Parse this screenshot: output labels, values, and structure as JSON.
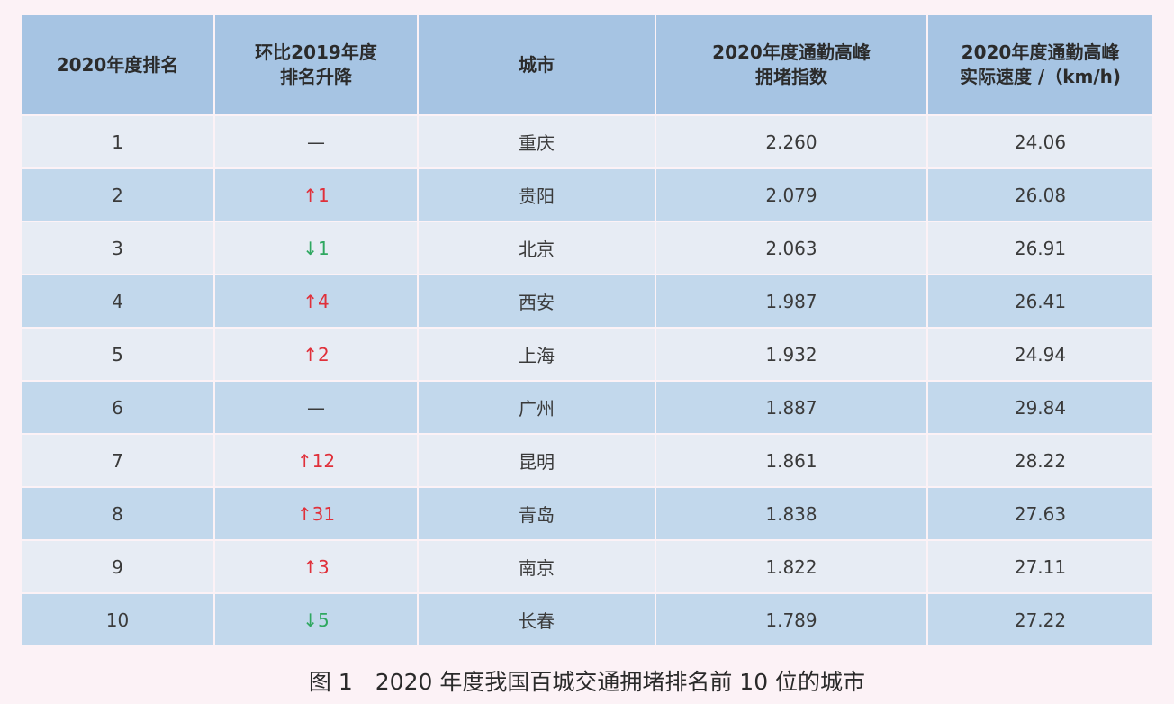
{
  "headers": [
    "2020年度排名",
    "环比2019年度\n排名升降",
    "城市",
    "2020年度通勤高峰\n拥堵指数",
    "2020年度通勤高峰\n实际速度 /（km/h)"
  ],
  "rows": [
    {
      "rank": "1",
      "change": "—",
      "dir": "none",
      "city": "重庆",
      "index": "2.260",
      "speed": "24.06"
    },
    {
      "rank": "2",
      "change": "↑1",
      "dir": "up",
      "city": "贵阳",
      "index": "2.079",
      "speed": "26.08"
    },
    {
      "rank": "3",
      "change": "↓1",
      "dir": "down",
      "city": "北京",
      "index": "2.063",
      "speed": "26.91"
    },
    {
      "rank": "4",
      "change": "↑4",
      "dir": "up",
      "city": "西安",
      "index": "1.987",
      "speed": "26.41"
    },
    {
      "rank": "5",
      "change": "↑2",
      "dir": "up",
      "city": "上海",
      "index": "1.932",
      "speed": "24.94"
    },
    {
      "rank": "6",
      "change": "—",
      "dir": "none",
      "city": "广州",
      "index": "1.887",
      "speed": "29.84"
    },
    {
      "rank": "7",
      "change": "↑12",
      "dir": "up",
      "city": "昆明",
      "index": "1.861",
      "speed": "28.22"
    },
    {
      "rank": "8",
      "change": "↑31",
      "dir": "up",
      "city": "青岛",
      "index": "1.838",
      "speed": "27.63"
    },
    {
      "rank": "9",
      "change": "↑3",
      "dir": "up",
      "city": "南京",
      "index": "1.822",
      "speed": "27.11"
    },
    {
      "rank": "10",
      "change": "↓5",
      "dir": "down",
      "city": "长春",
      "index": "1.789",
      "speed": "27.22"
    }
  ],
  "caption": "图 1　2020 年度我国百城交通拥堵排名前 10 位的城市",
  "colors": {
    "up": "#e0303a",
    "down": "#2fa860",
    "header_bg": "#a6c4e3",
    "row_light": "#e7ecf4",
    "row_dark": "#c2d8ec"
  }
}
